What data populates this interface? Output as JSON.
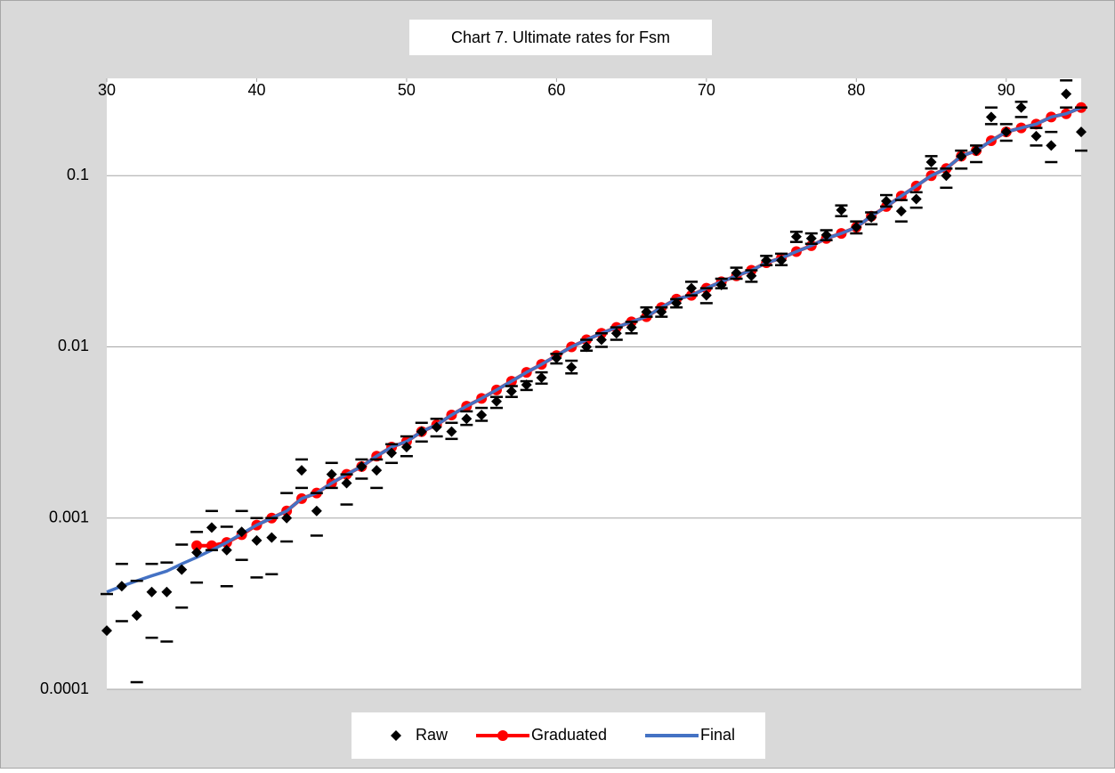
{
  "chart_data": {
    "type": "line",
    "title": "Chart 7. Ultimate rates for Fsm",
    "x": [
      30,
      31,
      32,
      33,
      34,
      35,
      36,
      37,
      38,
      39,
      40,
      41,
      42,
      43,
      44,
      45,
      46,
      47,
      48,
      49,
      50,
      51,
      52,
      53,
      54,
      55,
      56,
      57,
      58,
      59,
      60,
      61,
      62,
      63,
      64,
      65,
      66,
      67,
      68,
      69,
      70,
      71,
      72,
      73,
      74,
      75,
      76,
      77,
      78,
      79,
      80,
      81,
      82,
      83,
      84,
      85,
      86,
      87,
      88,
      89,
      90,
      91,
      92,
      93,
      94,
      95
    ],
    "xlim": [
      30,
      95
    ],
    "xticks": [
      30,
      40,
      50,
      60,
      70,
      80,
      90
    ],
    "ylim": [
      0.0001,
      0.37
    ],
    "yticks": [
      0.0001,
      0.001,
      0.01,
      0.1
    ],
    "y_scale": "log",
    "grid": true,
    "legend": "bottom",
    "series": [
      {
        "name": "Raw",
        "color": "#000000",
        "marker": "diamond",
        "values": [
          0.00022,
          0.0004,
          0.00027,
          0.00037,
          0.00037,
          0.0005,
          0.00063,
          0.00088,
          0.00065,
          0.00083,
          0.00074,
          0.00077,
          0.001,
          0.0019,
          0.0011,
          0.0018,
          0.0016,
          0.002,
          0.0019,
          0.0024,
          0.0026,
          0.0032,
          0.0034,
          0.0032,
          0.0038,
          0.004,
          0.0048,
          0.0055,
          0.006,
          0.0066,
          0.0086,
          0.0076,
          0.01,
          0.011,
          0.012,
          0.013,
          0.016,
          0.016,
          0.018,
          0.022,
          0.02,
          0.023,
          0.027,
          0.026,
          0.032,
          0.032,
          0.044,
          0.043,
          0.045,
          0.063,
          0.05,
          0.057,
          0.071,
          0.062,
          0.073,
          0.12,
          0.1,
          0.13,
          0.14,
          0.22,
          0.18,
          0.25,
          0.17,
          0.15,
          0.3,
          0.18
        ],
        "upper": [
          0.00036,
          0.00054,
          0.00043,
          0.00054,
          0.00055,
          0.0007,
          0.00083,
          0.0011,
          0.00089,
          0.0011,
          0.001,
          0.001,
          0.0014,
          0.0022,
          0.0014,
          0.0021,
          0.0018,
          0.0022,
          0.0022,
          0.0027,
          0.003,
          0.0036,
          0.0038,
          0.0036,
          0.0042,
          0.0044,
          0.0051,
          0.0059,
          0.0063,
          0.0071,
          0.0091,
          0.0083,
          0.011,
          0.012,
          0.013,
          0.014,
          0.017,
          0.017,
          0.019,
          0.024,
          0.022,
          0.025,
          0.029,
          0.028,
          0.034,
          0.035,
          0.047,
          0.046,
          0.048,
          0.067,
          0.054,
          0.061,
          0.077,
          0.072,
          0.08,
          0.13,
          0.11,
          0.14,
          0.15,
          0.25,
          0.2,
          0.27,
          0.19,
          0.18,
          0.36,
          0.25
        ],
        "lower": [
          null,
          0.00025,
          0.00011,
          0.0002,
          0.00019,
          0.0003,
          0.00042,
          0.00065,
          0.0004,
          0.00057,
          0.00045,
          0.00047,
          0.00073,
          0.0015,
          0.00079,
          0.0015,
          0.0012,
          0.0017,
          0.0015,
          0.0021,
          0.0023,
          0.0028,
          0.003,
          0.0029,
          0.0035,
          0.0037,
          0.0044,
          0.0051,
          0.0056,
          0.0061,
          0.008,
          0.007,
          0.0095,
          0.01,
          0.011,
          0.012,
          0.015,
          0.015,
          0.017,
          0.02,
          0.018,
          0.022,
          0.025,
          0.024,
          0.03,
          0.03,
          0.041,
          0.04,
          0.042,
          0.058,
          0.046,
          0.052,
          0.066,
          0.054,
          0.065,
          0.11,
          0.085,
          0.11,
          0.12,
          0.2,
          0.16,
          0.22,
          0.15,
          0.12,
          0.25,
          0.14
        ]
      },
      {
        "name": "Graduated",
        "color": "#ff0000",
        "marker": "circle",
        "values": [
          null,
          null,
          null,
          null,
          null,
          null,
          0.00069,
          0.00069,
          0.00072,
          0.0008,
          0.00091,
          0.001,
          0.0011,
          0.0013,
          0.0014,
          0.0016,
          0.0018,
          0.002,
          0.0023,
          0.0026,
          0.0028,
          0.0032,
          0.0035,
          0.004,
          0.0045,
          0.005,
          0.0056,
          0.0063,
          0.0071,
          0.0079,
          0.0089,
          0.01,
          0.011,
          0.012,
          0.013,
          0.014,
          0.015,
          0.017,
          0.019,
          0.02,
          0.022,
          0.024,
          0.026,
          0.028,
          0.031,
          0.033,
          0.036,
          0.039,
          0.043,
          0.046,
          0.05,
          0.058,
          0.066,
          0.076,
          0.087,
          0.1,
          0.11,
          0.13,
          0.14,
          0.16,
          0.18,
          0.19,
          0.2,
          0.22,
          0.23,
          0.25
        ]
      },
      {
        "name": "Final",
        "color": "#4472c4",
        "marker": "none",
        "values": [
          0.00037,
          0.0004,
          0.00043,
          0.00046,
          0.00049,
          0.00054,
          0.00059,
          0.00065,
          0.00072,
          0.00081,
          0.00091,
          0.001,
          0.0011,
          0.0013,
          0.0014,
          0.0016,
          0.0018,
          0.002,
          0.0023,
          0.0026,
          0.0028,
          0.0032,
          0.0035,
          0.004,
          0.0045,
          0.005,
          0.0056,
          0.0063,
          0.0071,
          0.0079,
          0.0089,
          0.01,
          0.011,
          0.012,
          0.013,
          0.014,
          0.015,
          0.017,
          0.019,
          0.02,
          0.022,
          0.024,
          0.026,
          0.028,
          0.031,
          0.033,
          0.036,
          0.039,
          0.043,
          0.046,
          0.05,
          0.058,
          0.066,
          0.076,
          0.087,
          0.1,
          0.11,
          0.13,
          0.14,
          0.16,
          0.18,
          0.19,
          0.2,
          0.22,
          0.23,
          0.25
        ]
      }
    ]
  }
}
